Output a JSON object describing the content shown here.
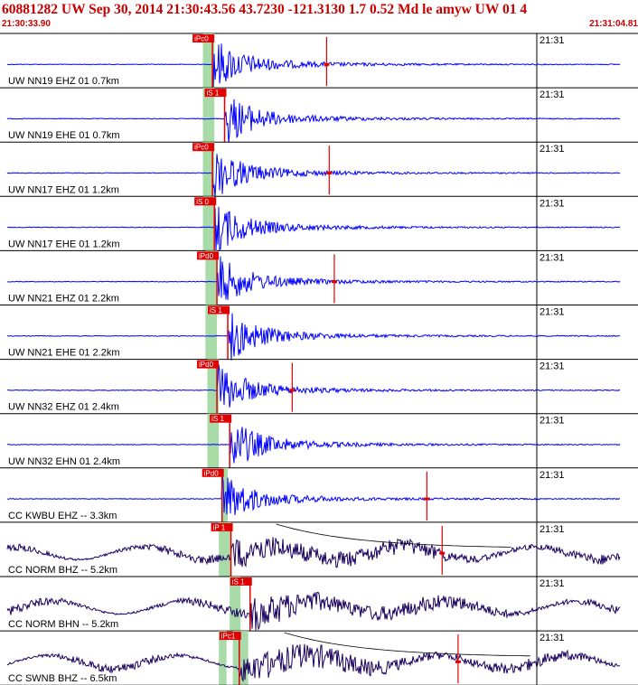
{
  "header": {
    "title": "60881282 UW Sep 30, 2014 21:30:43.56   43.7230 -121.3130  1.7 0.52 Md le amyw UW 01   4",
    "start_time": "21:30:33.90",
    "end_time": "21:31:04.81"
  },
  "colors": {
    "trace_short_period": "#0000ff",
    "trace_broadband": "#1a0060",
    "pick_marker": "#e00000",
    "pick_window": "#a8dba8",
    "header_text": "#c80000",
    "axis": "#000000"
  },
  "chart_data": {
    "type": "line",
    "description_hidden": false,
    "time_axis": {
      "start": "21:30:33.90",
      "end": "21:31:04.81",
      "minute_tick_label": "21:31"
    },
    "channels": [
      {
        "label": "UW NN19 EHZ 01 0.7km",
        "phase": "iPc0",
        "pick_frac": 0.333,
        "window": [
          0.318,
          0.336
        ],
        "coda_frac": 0.512,
        "style": "sp"
      },
      {
        "label": "UW NN19 EHE 01 0.7km",
        "phase": "iS 1",
        "pick_frac": 0.352,
        "window": [
          0.318,
          0.336
        ],
        "coda_frac": null,
        "style": "sp"
      },
      {
        "label": "UW NN17 EHZ 01 1.2km",
        "phase": "iPc0",
        "pick_frac": 0.333,
        "window": [
          0.318,
          0.336
        ],
        "coda_frac": 0.516,
        "style": "sp"
      },
      {
        "label": "UW NN17 EHE 01 1.2km",
        "phase": "iS 0",
        "pick_frac": 0.336,
        "window": [
          0.318,
          0.336
        ],
        "coda_frac": null,
        "style": "sp"
      },
      {
        "label": "UW NN21 EHZ 01 2.2km",
        "phase": "iPd0",
        "pick_frac": 0.34,
        "window": [
          0.322,
          0.34
        ],
        "coda_frac": 0.524,
        "style": "sp"
      },
      {
        "label": "UW NN21 EHE 01 2.2km",
        "phase": "iS 1",
        "pick_frac": 0.357,
        "window": [
          0.322,
          0.34
        ],
        "coda_frac": null,
        "style": "sp"
      },
      {
        "label": "UW NN32 EHZ 01 2.4km",
        "phase": "iPd0",
        "pick_frac": 0.34,
        "window": [
          0.325,
          0.343
        ],
        "coda_frac": 0.458,
        "style": "sp"
      },
      {
        "label": "UW NN32 EHN 01 2.4km",
        "phase": "iS 1",
        "pick_frac": 0.36,
        "window": [
          0.325,
          0.343
        ],
        "coda_frac": null,
        "style": "sp"
      },
      {
        "label": "CC KWBU EHZ -- 3.3km",
        "phase": "iPd0",
        "pick_frac": 0.348,
        "window": [
          0.348,
          0.357
        ],
        "coda_frac": 0.669,
        "style": "sp"
      },
      {
        "label": "CC NORM BHZ -- 5.2km",
        "phase": "iP 1",
        "pick_frac": 0.362,
        "window": [
          0.343,
          0.362
        ],
        "coda_frac": 0.693,
        "style": "bb"
      },
      {
        "label": "CC NORM BHN -- 5.2km",
        "phase": "iS 1",
        "pick_frac": 0.392,
        "window": [
          0.36,
          0.377
        ],
        "coda_frac": null,
        "style": "bb"
      },
      {
        "label": "CC SWNB BHZ -- 6.5km",
        "phase": "iPc1",
        "pick_frac": 0.375,
        "window": [
          0.343,
          0.355,
          0.365,
          0.389
        ],
        "coda_frac": 0.718,
        "style": "bb"
      }
    ]
  }
}
